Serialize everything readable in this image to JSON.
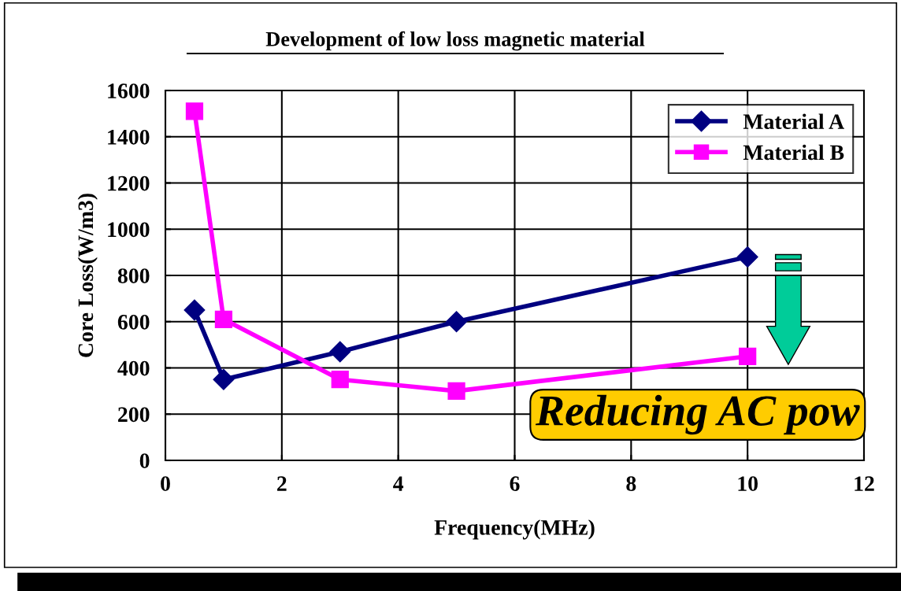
{
  "chart_data": {
    "type": "line",
    "title": "Development of low loss magnetic material",
    "xlabel": "Frequency(MHz)",
    "ylabel": "Core Loss(W/m3)",
    "series": [
      {
        "name": "Material A",
        "color": "#000080",
        "marker": "diamond",
        "x": [
          0.5,
          1,
          3,
          5,
          10
        ],
        "values": [
          650,
          350,
          470,
          600,
          880
        ]
      },
      {
        "name": "Material B",
        "color": "#ff00ff",
        "marker": "square",
        "x": [
          0.5,
          1,
          3,
          5,
          10
        ],
        "values": [
          1510,
          610,
          350,
          300,
          450
        ]
      }
    ],
    "xlim": [
      0,
      12
    ],
    "xticks": [
      0,
      2,
      4,
      6,
      8,
      10,
      12
    ],
    "ylim": [
      0,
      1600
    ],
    "yticks": [
      0,
      200,
      400,
      600,
      800,
      1000,
      1200,
      1400,
      1600
    ],
    "grid": true,
    "legend": "top right",
    "annotations": [
      "Reducing AC pow"
    ]
  }
}
